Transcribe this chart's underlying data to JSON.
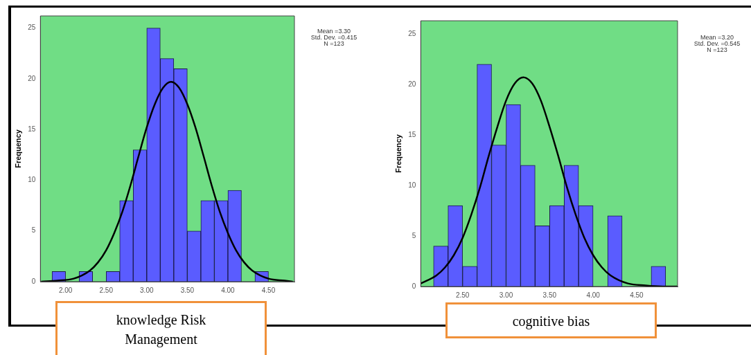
{
  "chart_data": [
    {
      "type": "histogram",
      "xlabel": "knowledge Risk Management",
      "ylabel": "Frequency",
      "bins": [
        1.833,
        2.0,
        2.167,
        2.333,
        2.5,
        2.667,
        2.833,
        3.0,
        3.167,
        3.333,
        3.5,
        3.667,
        3.833,
        4.0,
        4.167,
        4.333,
        4.5
      ],
      "values": [
        1,
        0,
        1,
        0,
        1,
        8,
        13,
        25,
        22,
        21,
        5,
        8,
        8,
        9,
        0,
        1
      ],
      "color": "#5a5cff",
      "series": [
        {
          "type": "line",
          "color": "#000000",
          "x": [
            1.7,
            1.9,
            2.1,
            2.3,
            2.4,
            2.5,
            2.6,
            2.7,
            2.8,
            2.9,
            3.0,
            3.1,
            3.2,
            3.3,
            3.4,
            3.5,
            3.6,
            3.7,
            3.8,
            3.9,
            4.0,
            4.1,
            4.2,
            4.3,
            4.5,
            4.7,
            4.8
          ],
          "values": [
            0.0,
            0.1,
            0.3,
            1.1,
            1.9,
            3.1,
            4.8,
            6.9,
            9.5,
            12.4,
            15.2,
            17.5,
            19.1,
            19.7,
            19.1,
            17.5,
            15.2,
            12.4,
            9.5,
            6.9,
            4.8,
            3.1,
            1.9,
            1.1,
            0.3,
            0.1,
            0.0
          ]
        }
      ],
      "xlim": [
        1.69,
        4.82
      ],
      "ylim": [
        0,
        26.2
      ],
      "xticks": [
        {
          "value": 2,
          "label": "2.00"
        },
        {
          "value": 2.5,
          "label": "2.50"
        },
        {
          "value": 3,
          "label": "3.00"
        },
        {
          "value": 3.5,
          "label": "3.50"
        },
        {
          "value": 4,
          "label": "4.00"
        },
        {
          "value": 4.5,
          "label": "4.50"
        }
      ],
      "yticks": [
        0,
        5,
        10,
        15,
        20,
        25
      ],
      "annotations": [
        "Mean =3.30",
        "Std. Dev. =0.415",
        "N =123"
      ]
    },
    {
      "type": "histogram",
      "xlabel": "cognitive bias",
      "ylabel": "Frequency",
      "bins": [
        2.167,
        2.333,
        2.5,
        2.667,
        2.833,
        3.0,
        3.167,
        3.333,
        3.5,
        3.667,
        3.833,
        4.0,
        4.167,
        4.333,
        4.5,
        4.667,
        4.833
      ],
      "values": [
        4,
        8,
        2,
        22,
        14,
        18,
        12,
        6,
        8,
        12,
        8,
        0,
        7,
        0,
        0,
        2
      ],
      "color": "#5a5cff",
      "series": [
        {
          "type": "line",
          "color": "#000000",
          "x": [
            2.02,
            2.2,
            2.3,
            2.4,
            2.5,
            2.6,
            2.7,
            2.8,
            2.9,
            3.0,
            3.1,
            3.2,
            3.3,
            3.4,
            3.5,
            3.6,
            3.7,
            3.8,
            3.9,
            4.0,
            4.1,
            4.2,
            4.4,
            4.6,
            4.8,
            4.97
          ],
          "values": [
            0.3,
            1.1,
            1.9,
            3.1,
            4.8,
            7.1,
            9.8,
            12.9,
            15.8,
            18.4,
            20.1,
            20.7,
            20.1,
            18.4,
            15.8,
            12.9,
            9.8,
            7.1,
            4.8,
            3.1,
            1.9,
            1.1,
            0.3,
            0.1,
            0.0,
            0.0
          ]
        }
      ],
      "xlim": [
        2.02,
        4.97
      ],
      "ylim": [
        0,
        26.3
      ],
      "xticks": [
        {
          "value": 2.5,
          "label": "2.50"
        },
        {
          "value": 3,
          "label": "3.00"
        },
        {
          "value": 3.5,
          "label": "3.50"
        },
        {
          "value": 4,
          "label": "4.00"
        },
        {
          "value": 4.5,
          "label": "4.50"
        }
      ],
      "yticks": [
        0,
        5,
        10,
        15,
        20,
        25
      ],
      "annotations": [
        "Mean =3.20",
        "Std. Dev. =0.545",
        "N =123"
      ]
    }
  ]
}
